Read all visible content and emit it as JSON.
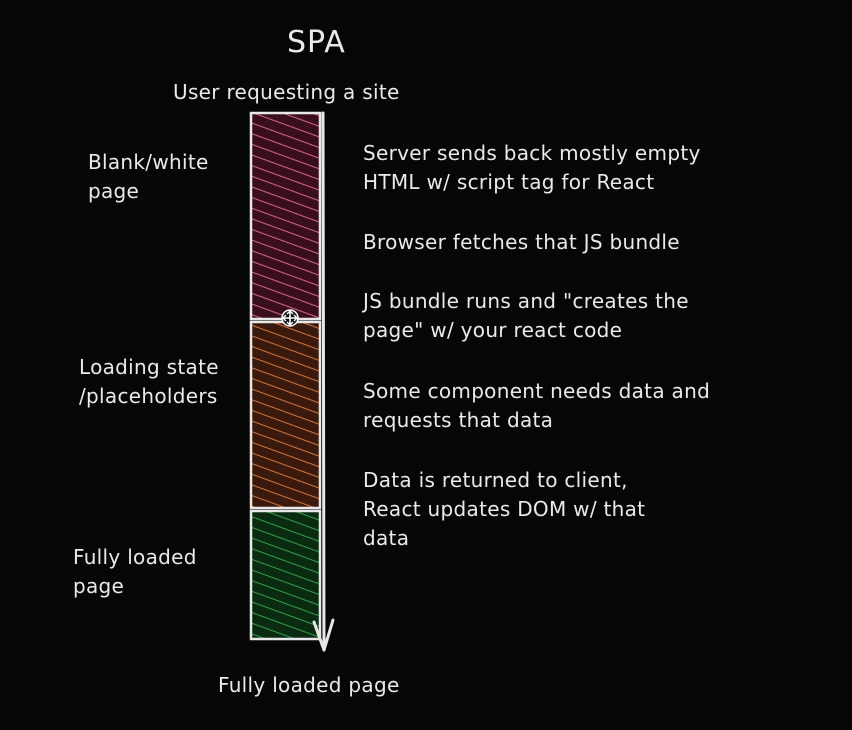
{
  "title": "SPA",
  "top_label": "User requesting a site",
  "bottom_label": "Fully loaded page",
  "left_labels": {
    "blank": "Blank/white\npage",
    "loading": "Loading state\n/placeholders",
    "loaded": "Fully loaded\npage"
  },
  "steps": [
    "Server sends back mostly empty\nHTML w/ script tag for React",
    "Browser fetches that JS bundle",
    "JS bundle runs and \"creates the\npage\" w/ your react code",
    "Some component needs data and\nrequests that data",
    "Data is returned to client,\nReact updates DOM w/ that\ndata"
  ],
  "colors": {
    "background": "#060606",
    "blank_hatch": "#d9668c",
    "loading_hatch": "#d8733a",
    "loaded_hatch": "#2fa24a",
    "outline": "#e8e8e8"
  },
  "icons": [
    "move-cursor-icon"
  ]
}
